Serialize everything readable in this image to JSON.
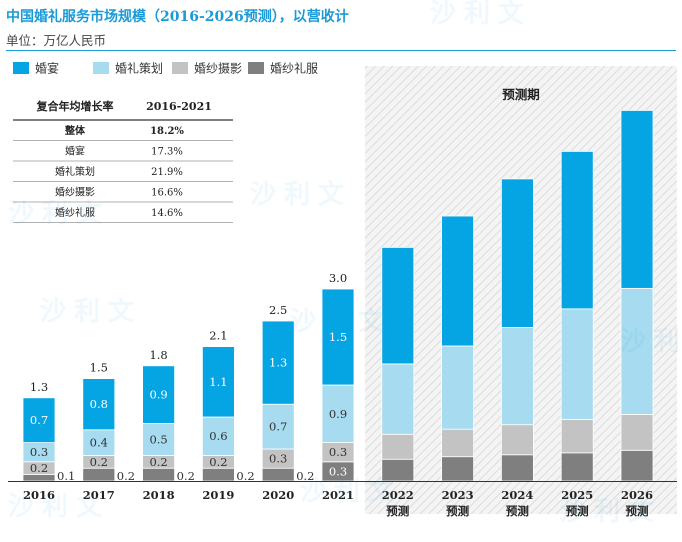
{
  "header": {
    "title": "中国婚礼服务市场规模（2016-2026预测），以营收计",
    "subtitle": "单位：万亿人民币"
  },
  "colors": {
    "wedding_banquet": "#05a5e3",
    "wedding_planning": "#a6dbf0",
    "wedding_photography": "#c3c3c3",
    "wedding_dress": "#7f7f7f",
    "title": "#1a9ad6"
  },
  "growth_table": {
    "headers": [
      "复合年均增长率",
      "2016-2021"
    ],
    "rows": [
      {
        "label": "整体",
        "value": "18.2%"
      },
      {
        "label": "婚宴",
        "value": "17.3%"
      },
      {
        "label": "婚礼策划",
        "value": "21.9%"
      },
      {
        "label": "婚纱摄影",
        "value": "16.6%"
      },
      {
        "label": "婚纱礼服",
        "value": "14.6%"
      }
    ]
  },
  "watermark": "沙利文",
  "chart_data": {
    "type": "bar",
    "stacked": true,
    "title": "中国婚礼服务市场规模（2016-2026预测），以营收计",
    "ylabel": "万亿人民币",
    "categories": [
      "2016",
      "2017",
      "2018",
      "2019",
      "2020",
      "2021",
      "2022",
      "2023",
      "2024",
      "2025",
      "2026"
    ],
    "category_sublabels": [
      "",
      "",
      "",
      "",
      "",
      "",
      "预测",
      "预测",
      "预测",
      "预测",
      "预测"
    ],
    "forecast_label": "预测期",
    "forecast_from_index": 6,
    "totals": [
      1.3,
      1.5,
      1.8,
      2.1,
      2.5,
      3.0,
      null,
      null,
      null,
      null,
      null
    ],
    "series": [
      {
        "name": "婚纱礼服",
        "values": [
          0.1,
          0.2,
          0.2,
          0.2,
          0.2,
          0.3,
          0.34,
          0.38,
          0.41,
          0.44,
          0.48
        ]
      },
      {
        "name": "婚纱摄影",
        "values": [
          0.2,
          0.2,
          0.2,
          0.2,
          0.3,
          0.3,
          0.39,
          0.43,
          0.47,
          0.52,
          0.56
        ]
      },
      {
        "name": "婚礼策划",
        "values": [
          0.3,
          0.4,
          0.5,
          0.6,
          0.7,
          0.9,
          1.1,
          1.3,
          1.52,
          1.73,
          1.97
        ]
      },
      {
        "name": "婚宴",
        "values": [
          0.7,
          0.8,
          0.9,
          1.1,
          1.3,
          1.5,
          1.82,
          2.03,
          2.32,
          2.46,
          2.78
        ]
      }
    ],
    "segment_labels": [
      [
        "0.1",
        "0.2",
        "0.2",
        "0.2",
        "0.2",
        "0.3",
        "",
        "",
        "",
        "",
        ""
      ],
      [
        "0.2",
        "0.2",
        "0.2",
        "0.2",
        "0.3",
        "0.3",
        "",
        "",
        "",
        "",
        ""
      ],
      [
        "0.3",
        "0.4",
        "0.5",
        "0.6",
        "0.7",
        "0.9",
        "",
        "",
        "",
        "",
        ""
      ],
      [
        "0.7",
        "0.8",
        "0.9",
        "1.1",
        "1.3",
        "1.5",
        "",
        "",
        "",
        "",
        ""
      ]
    ],
    "legend": [
      "婚宴",
      "婚礼策划",
      "婚纱摄影",
      "婚纱礼服"
    ],
    "legend_position": "top-left",
    "ylim": [
      0,
      6.0
    ],
    "grid": false
  }
}
